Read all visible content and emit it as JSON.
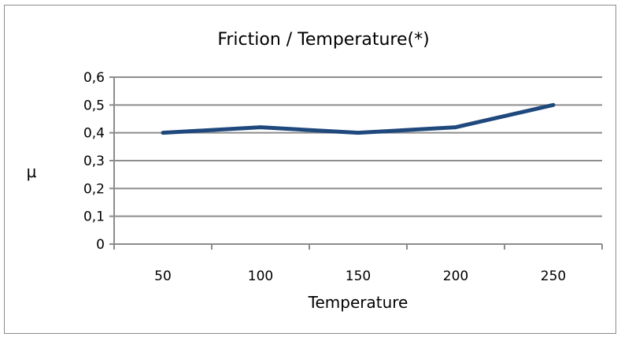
{
  "chart_data": {
    "type": "line",
    "title": "Friction / Temperature(*)",
    "xlabel": "Temperature",
    "ylabel": "μ",
    "categories": [
      "50",
      "100",
      "150",
      "200",
      "250"
    ],
    "series": [
      {
        "values": [
          0.4,
          0.42,
          0.4,
          0.42,
          0.5
        ]
      }
    ],
    "ylim": [
      0,
      0.6
    ],
    "yticks": [
      "0",
      "0,1",
      "0,2",
      "0,3",
      "0,4",
      "0,5",
      "0,6"
    ],
    "grid": true,
    "legend": "none",
    "line_color": "#1f497d"
  }
}
